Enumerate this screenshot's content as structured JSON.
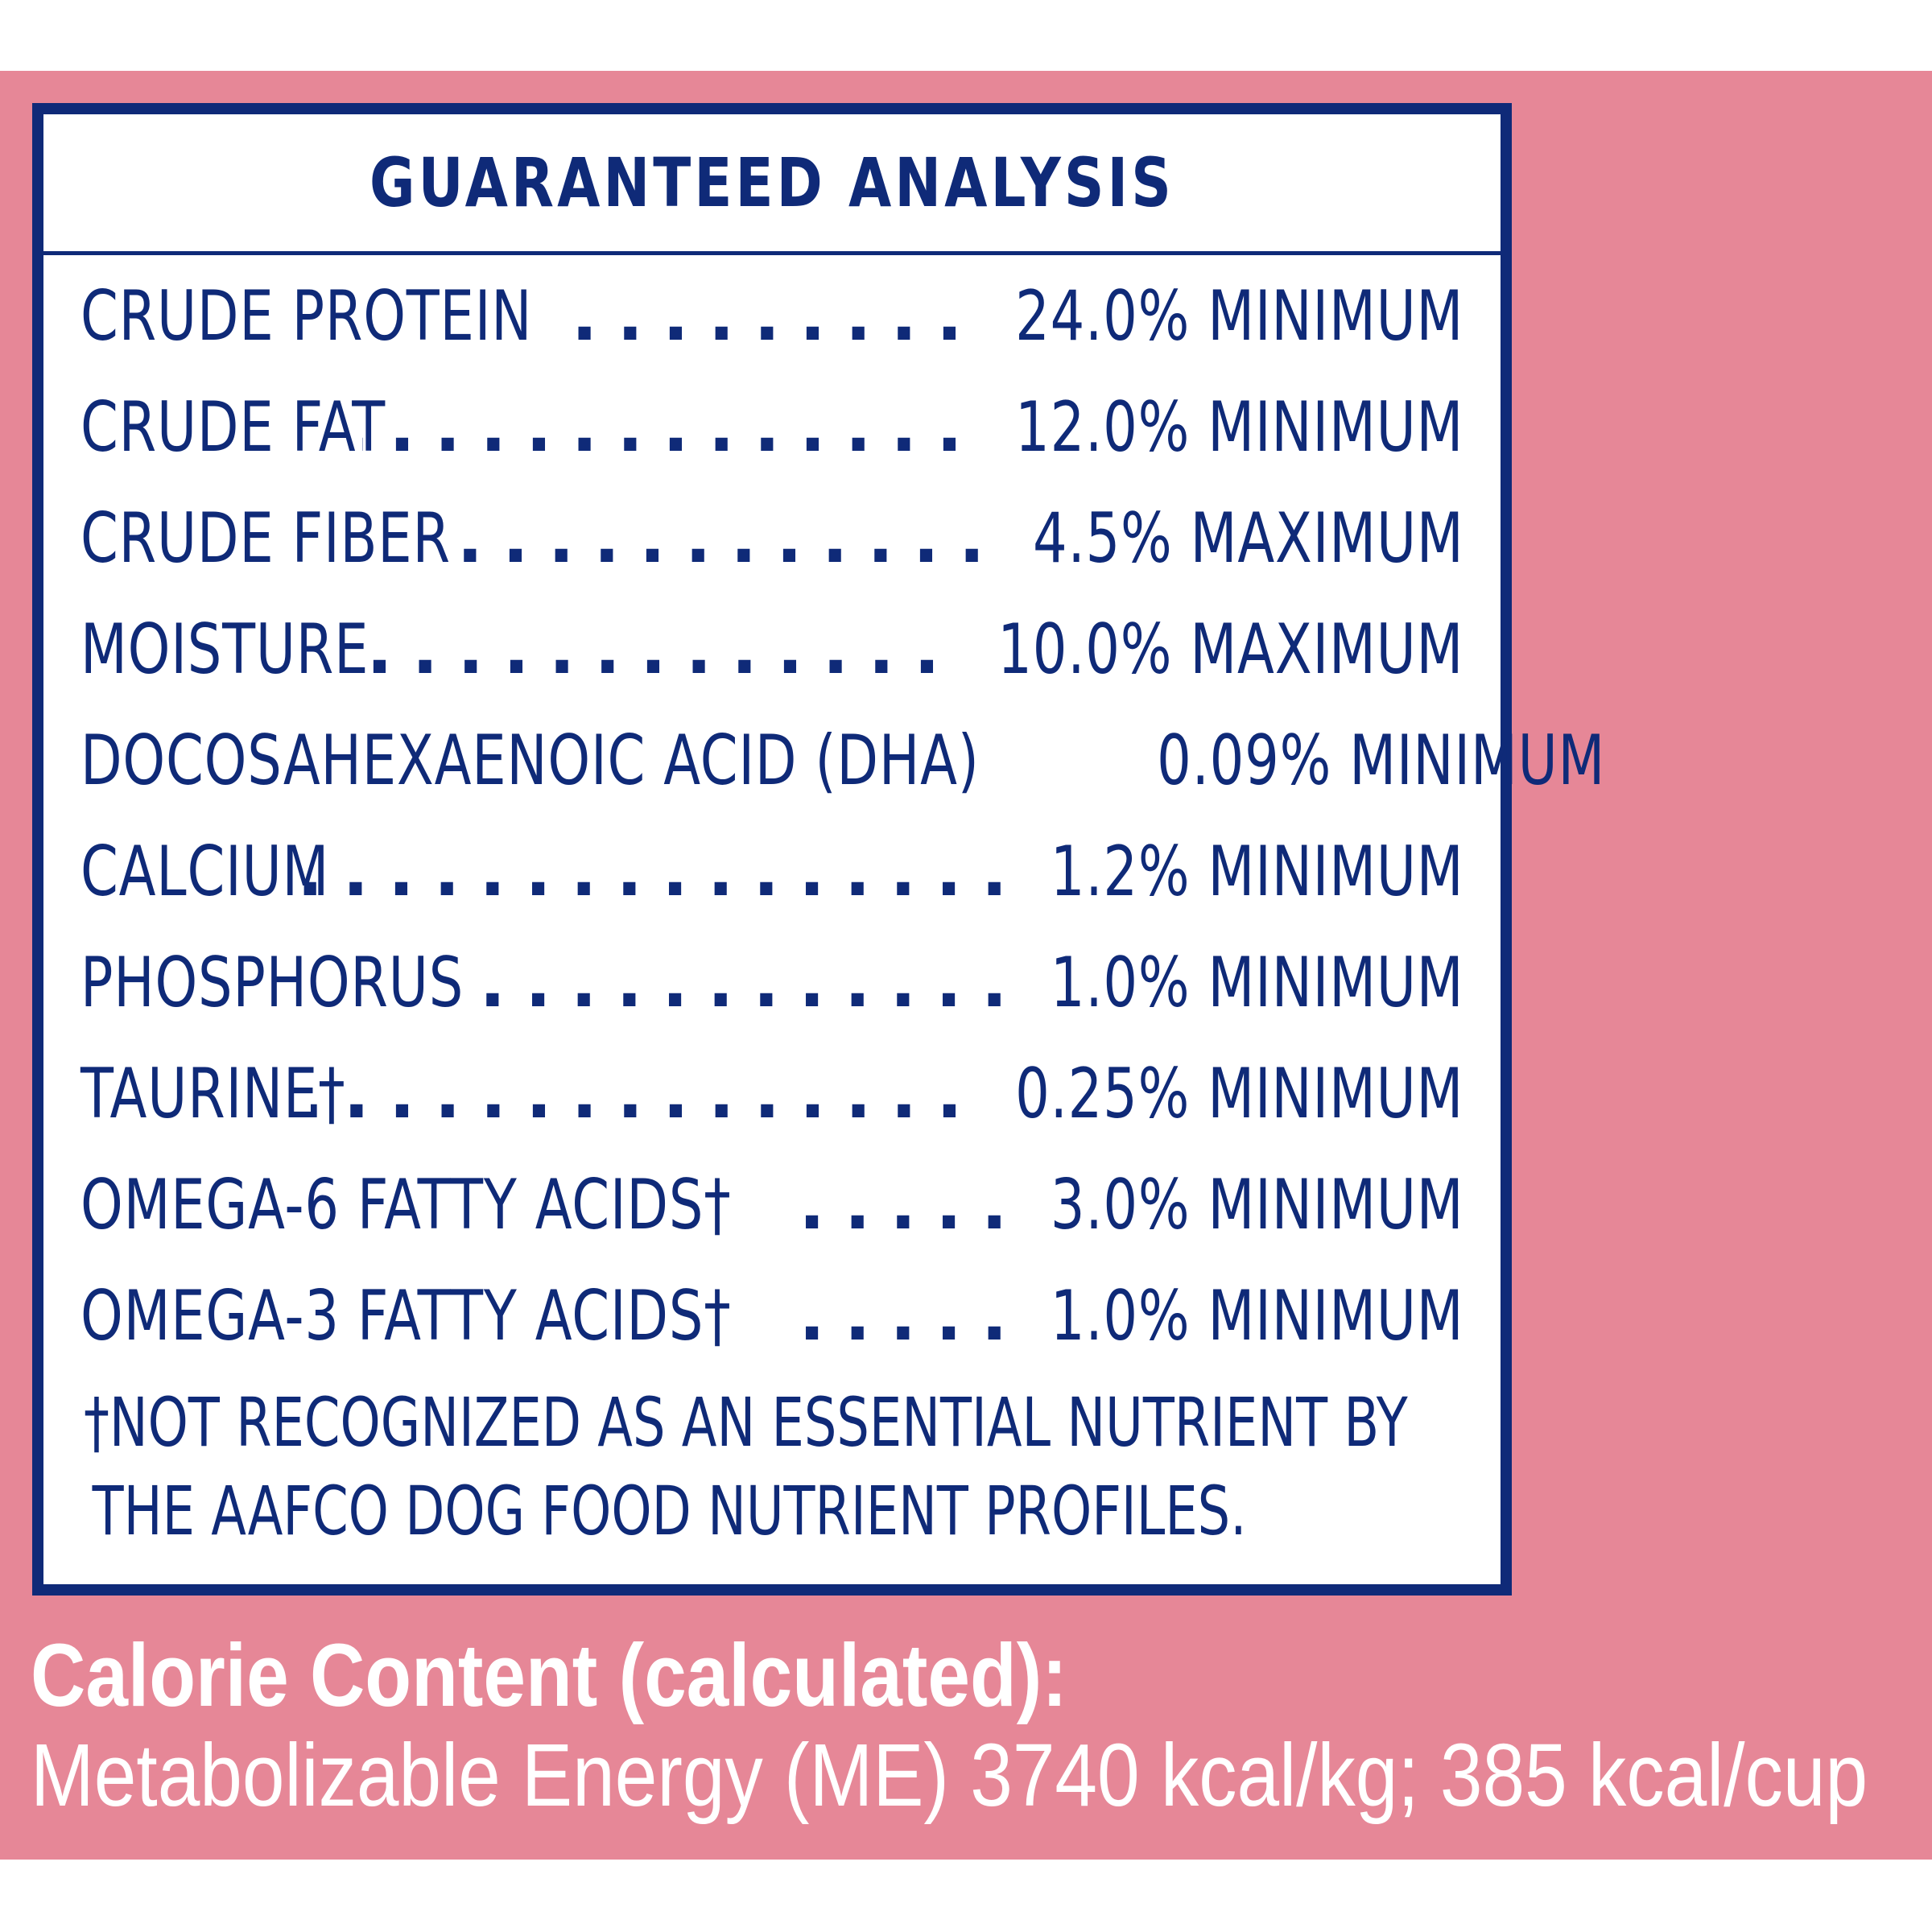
{
  "analysis": {
    "title": "GUARANTEED ANALYSIS",
    "rows": [
      {
        "name": "CRUDE PROTEIN",
        "value": "24.0% MINIMUM"
      },
      {
        "name": "CRUDE FAT",
        "value": "12.0% MINIMUM"
      },
      {
        "name": "CRUDE FIBER",
        "value": "4.5% MAXIMUM"
      },
      {
        "name": "MOISTURE",
        "value": "10.0% MAXIMUM"
      },
      {
        "name": "DOCOSAHEXAENOIC ACID (DHA)",
        "value": "0.09% MINIMUM"
      },
      {
        "name": "CALCIUM",
        "value": "1.2% MINIMUM"
      },
      {
        "name": "PHOSPHORUS",
        "value": "1.0% MINIMUM"
      },
      {
        "name": "TAURINE†",
        "value": "0.25% MINIMUM"
      },
      {
        "name": "OMEGA-6 FATTY ACIDS†",
        "value": "3.0% MINIMUM"
      },
      {
        "name": "OMEGA-3 FATTY ACIDS†",
        "value": "1.0% MINIMUM"
      }
    ],
    "footnote_line1": "†NOT RECOGNIZED AS AN ESSENTIAL NUTRIENT BY",
    "footnote_line2": "THE  AAFCO DOG FOOD NUTRIENT PROFILES."
  },
  "calorie": {
    "heading": "Calorie Content (calculated):",
    "detail": "Metabolizable Energy (ME) 3740 kcal/kg; 385 kcal/cup"
  },
  "colors": {
    "panel": "#e68797",
    "navy": "#0f2a78",
    "white": "#ffffff"
  }
}
